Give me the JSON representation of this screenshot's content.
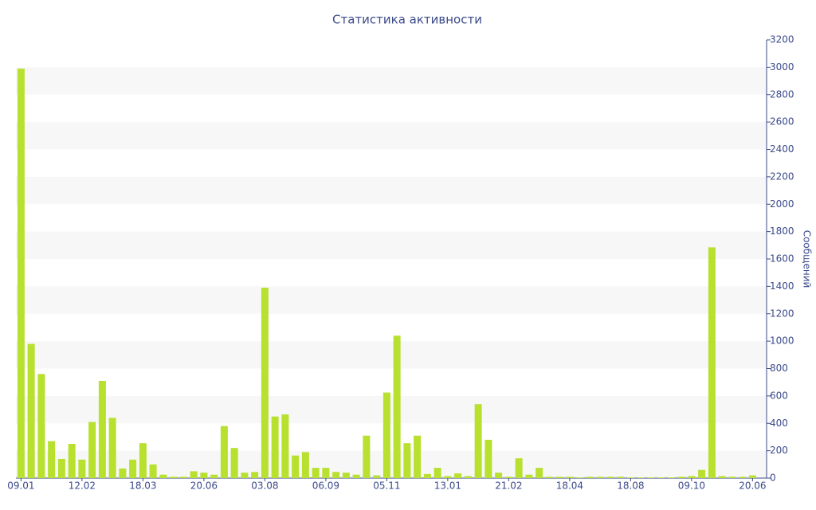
{
  "chart_data": {
    "type": "bar",
    "title": "Статистика активности",
    "y_label": "Сообщений",
    "categories": [
      "09.01",
      null,
      null,
      null,
      null,
      null,
      "12.02",
      null,
      null,
      null,
      null,
      null,
      "18.03",
      null,
      null,
      null,
      null,
      null,
      "20.06",
      null,
      null,
      null,
      null,
      null,
      "03.08",
      null,
      null,
      null,
      null,
      null,
      "06.09",
      null,
      null,
      null,
      null,
      null,
      "05.11",
      null,
      null,
      null,
      null,
      null,
      "13.01",
      null,
      null,
      null,
      null,
      null,
      "21.02",
      null,
      null,
      null,
      null,
      null,
      "18.04",
      null,
      null,
      null,
      null,
      null,
      "18.08",
      null,
      null,
      null,
      null,
      null,
      "09.10",
      null,
      null,
      null,
      null,
      null,
      "20.06"
    ],
    "values": [
      2990,
      980,
      760,
      270,
      140,
      250,
      135,
      410,
      710,
      440,
      70,
      135,
      255,
      100,
      25,
      10,
      10,
      50,
      40,
      25,
      380,
      220,
      40,
      45,
      1390,
      450,
      465,
      165,
      190,
      75,
      75,
      45,
      40,
      25,
      310,
      20,
      625,
      1040,
      255,
      310,
      30,
      75,
      15,
      35,
      15,
      540,
      280,
      40,
      10,
      145,
      25,
      75,
      10,
      10,
      10,
      5,
      10,
      10,
      10,
      10,
      5,
      5,
      5,
      5,
      5,
      10,
      15,
      60,
      1685,
      15,
      10,
      10,
      20
    ],
    "color": "#b8e02f",
    "ylim": [
      0,
      3200
    ],
    "yticks": [
      0,
      200,
      400,
      600,
      800,
      1000,
      1200,
      1400,
      1600,
      1800,
      2000,
      2200,
      2400,
      2600,
      2800,
      3000,
      3200
    ],
    "grid": true
  }
}
